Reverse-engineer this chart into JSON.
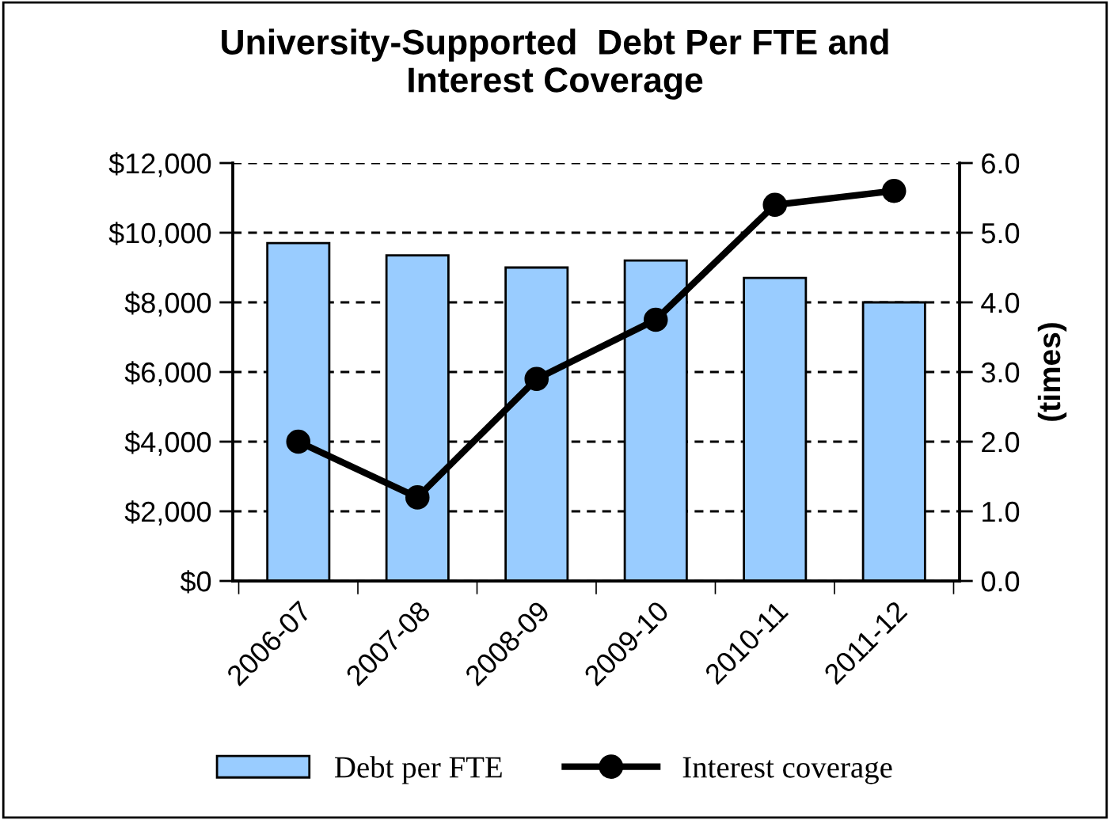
{
  "chart_data": {
    "type": "bar",
    "title": "University-Supported  Debt Per FTE and\nInterest Coverage",
    "categories": [
      "2006-07",
      "2007-08",
      "2008-09",
      "2009-10",
      "2010-11",
      "2011-12"
    ],
    "series": [
      {
        "name": "Debt per FTE",
        "color": "#99ccff",
        "values": [
          9700,
          9350,
          9000,
          9200,
          8700,
          8000
        ]
      },
      {
        "name": "Interest coverage",
        "type": "line",
        "axis": "y2",
        "color": "#000000",
        "marker": "circle",
        "line_style": "solid",
        "values": [
          2.0,
          1.2,
          2.9,
          3.75,
          5.4,
          5.6
        ]
      }
    ],
    "ylim": [
      0,
      12000
    ],
    "yticks": [
      {
        "value": 0,
        "label": "$0"
      },
      {
        "value": 2000,
        "label": "$2,000"
      },
      {
        "value": 4000,
        "label": "$4,000"
      },
      {
        "value": 6000,
        "label": "$6,000"
      },
      {
        "value": 8000,
        "label": "$8,000"
      },
      {
        "value": 10000,
        "label": "$10,000"
      },
      {
        "value": 12000,
        "label": "$12,000"
      }
    ],
    "y2lim": [
      0,
      6
    ],
    "y2ticks": [
      {
        "value": 0,
        "label": "0.0"
      },
      {
        "value": 1,
        "label": "1.0"
      },
      {
        "value": 2,
        "label": "2.0"
      },
      {
        "value": 3,
        "label": "3.0"
      },
      {
        "value": 4,
        "label": "4.0"
      },
      {
        "value": 5,
        "label": "5.0"
      },
      {
        "value": 6,
        "label": "6.0"
      }
    ],
    "y2label": "(times)",
    "grid": "y",
    "legend": "bottom"
  }
}
